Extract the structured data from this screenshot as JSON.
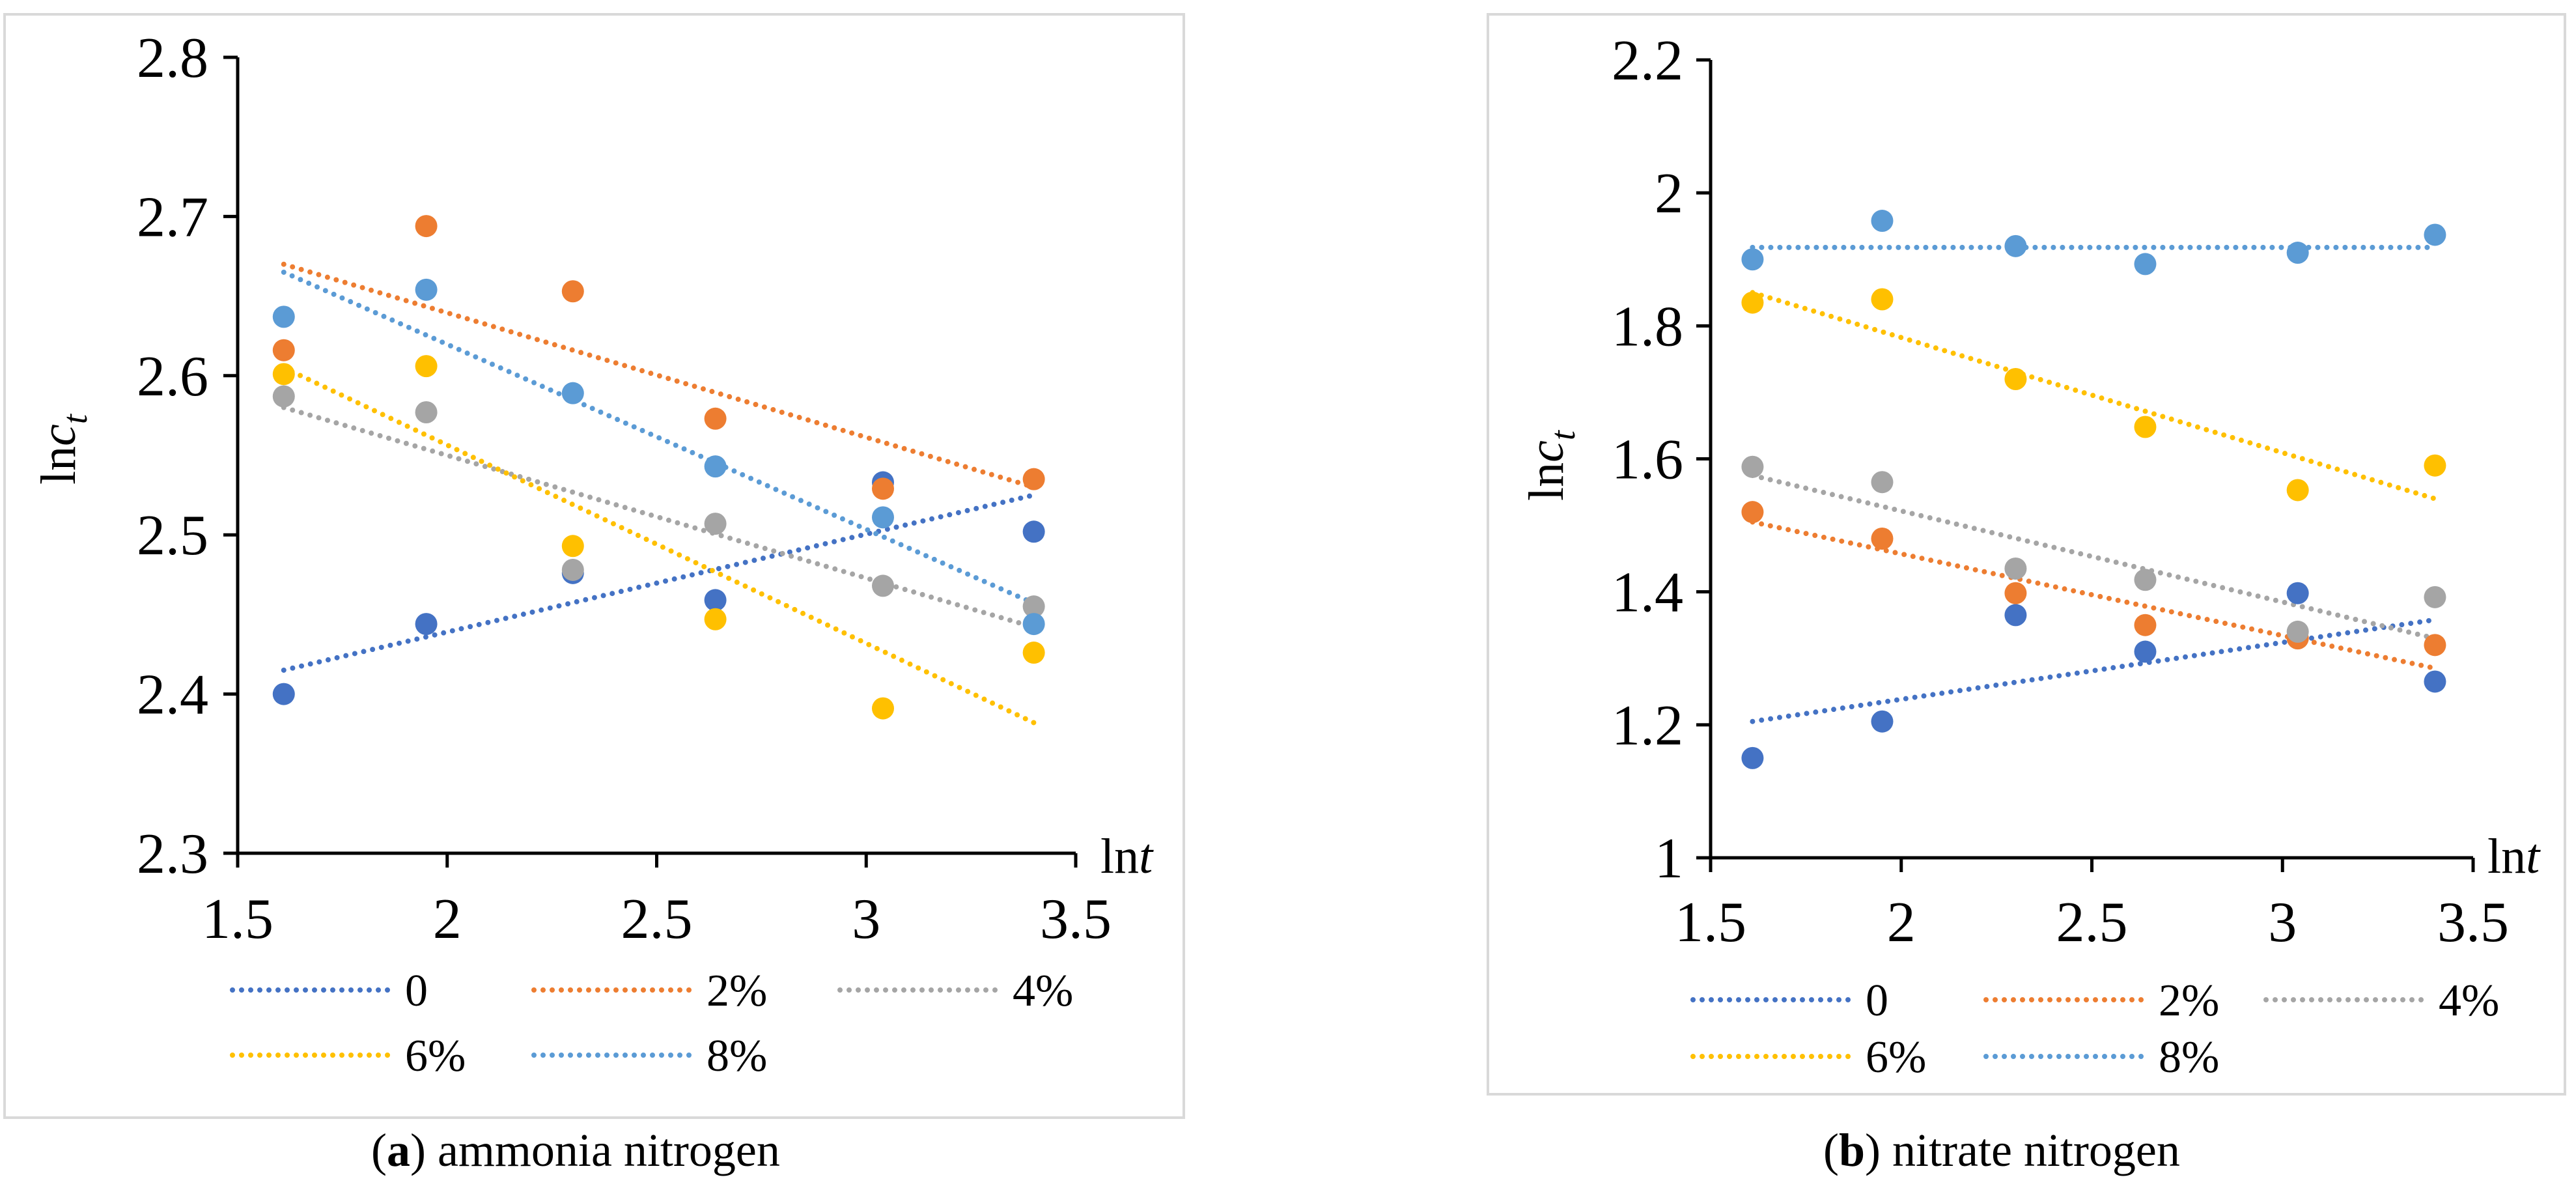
{
  "chart_data": [
    {
      "type": "scatter",
      "panel_letter": "a",
      "caption": "ammonia nitrogen",
      "xlabel": "lnt",
      "ylabel": "lnc_t",
      "xlim": [
        1.5,
        3.5
      ],
      "ylim": [
        2.3,
        2.8
      ],
      "xticks": [
        1.5,
        2,
        2.5,
        3,
        3.5
      ],
      "yticks": [
        2.3,
        2.4,
        2.5,
        2.6,
        2.7,
        2.8
      ],
      "x": [
        1.61,
        1.95,
        2.3,
        2.64,
        3.04,
        3.4
      ],
      "series": [
        {
          "name": "0",
          "color": "#4472C4",
          "values": [
            2.4,
            2.444,
            2.476,
            2.459,
            2.533,
            2.502
          ],
          "trend": [
            2.415,
            2.525
          ]
        },
        {
          "name": "2%",
          "color": "#ED7D31",
          "values": [
            2.616,
            2.694,
            2.653,
            2.573,
            2.529,
            2.535
          ],
          "trend": [
            2.67,
            2.53
          ]
        },
        {
          "name": "4%",
          "color": "#A5A5A5",
          "values": [
            2.587,
            2.577,
            2.478,
            2.507,
            2.468,
            2.455
          ],
          "trend": [
            2.58,
            2.442
          ]
        },
        {
          "name": "6%",
          "color": "#FFC000",
          "values": [
            2.601,
            2.606,
            2.493,
            2.447,
            2.391,
            2.426
          ],
          "trend": [
            2.605,
            2.382
          ]
        },
        {
          "name": "8%",
          "color": "#5B9BD5",
          "values": [
            2.637,
            2.654,
            2.589,
            2.543,
            2.511,
            2.444
          ],
          "trend": [
            2.665,
            2.457
          ]
        }
      ]
    },
    {
      "type": "scatter",
      "panel_letter": "b",
      "caption": "nitrate nitrogen",
      "xlabel": "lnt",
      "ylabel": "lnc_t",
      "xlim": [
        1.5,
        3.5
      ],
      "ylim": [
        1.0,
        2.2
      ],
      "xticks": [
        1.5,
        2,
        2.5,
        3,
        3.5
      ],
      "yticks": [
        1,
        1.2,
        1.4,
        1.6,
        1.8,
        2,
        2.2
      ],
      "x": [
        1.61,
        1.95,
        2.3,
        2.64,
        3.04,
        3.4
      ],
      "series": [
        {
          "name": "0",
          "color": "#4472C4",
          "values": [
            1.15,
            1.205,
            1.365,
            1.31,
            1.398,
            1.265
          ],
          "trend": [
            1.205,
            1.358
          ]
        },
        {
          "name": "2%",
          "color": "#ED7D31",
          "values": [
            1.52,
            1.48,
            1.398,
            1.35,
            1.33,
            1.32
          ],
          "trend": [
            1.505,
            1.285
          ]
        },
        {
          "name": "4%",
          "color": "#A5A5A5",
          "values": [
            1.588,
            1.565,
            1.435,
            1.418,
            1.34,
            1.392
          ],
          "trend": [
            1.575,
            1.33
          ]
        },
        {
          "name": "6%",
          "color": "#FFC000",
          "values": [
            1.835,
            1.84,
            1.72,
            1.648,
            1.553,
            1.59
          ],
          "trend": [
            1.85,
            1.54
          ]
        },
        {
          "name": "8%",
          "color": "#5B9BD5",
          "values": [
            1.9,
            1.958,
            1.92,
            1.893,
            1.91,
            1.937
          ],
          "trend": [
            1.918,
            1.918
          ]
        }
      ]
    }
  ]
}
